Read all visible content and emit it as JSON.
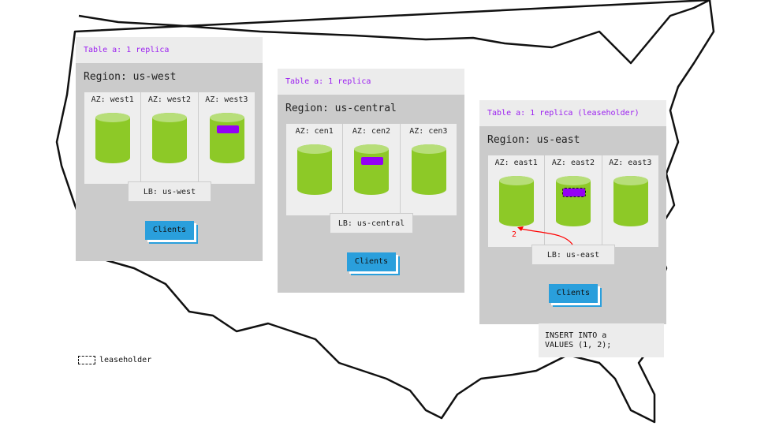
{
  "regions": [
    {
      "table_label": "Table a: 1 replica",
      "title": "Region: us-west",
      "azs": [
        "AZ: west1",
        "AZ: west2",
        "AZ: west3"
      ],
      "lb": "LB: us-west",
      "clients": "Clients"
    },
    {
      "table_label": "Table a: 1 replica",
      "title": "Region: us-central",
      "azs": [
        "AZ: cen1",
        "AZ: cen2",
        "AZ: cen3"
      ],
      "lb": "LB: us-central",
      "clients": "Clients"
    },
    {
      "table_label": "Table a: 1 replica (leaseholder)",
      "title": "Region: us-east",
      "azs": [
        "AZ: east1",
        "AZ: east2",
        "AZ: east3"
      ],
      "lb": "LB: us-east",
      "clients": "Clients"
    }
  ],
  "arrow_label": "2",
  "sql": "INSERT INTO a\nVALUES (1, 2);",
  "legend": {
    "label": "leaseholder"
  },
  "colors": {
    "replica": "#9400f5",
    "node": "#8dc927",
    "clients": "#2a9fdc",
    "arrow": "#ff0000"
  }
}
